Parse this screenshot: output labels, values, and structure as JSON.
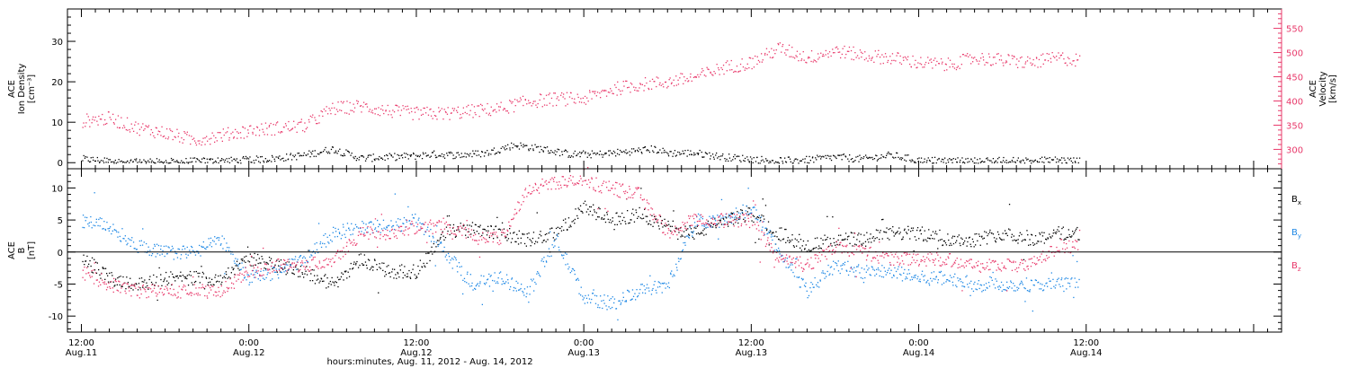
{
  "colors": {
    "black": "#000000",
    "pink": "#e8386a",
    "blue": "#1e88e5"
  },
  "x_axis": {
    "title": "hours:minutes, Aug. 11, 2012 - Aug. 14, 2012",
    "range_hours": [
      -1,
      86
    ],
    "ticks": [
      {
        "t": 0,
        "time": "12:00",
        "date": "Aug.11"
      },
      {
        "t": 12,
        "time": "0:00",
        "date": "Aug.12"
      },
      {
        "t": 24,
        "time": "12:00",
        "date": "Aug.12"
      },
      {
        "t": 36,
        "time": "0:00",
        "date": "Aug.13"
      },
      {
        "t": 48,
        "time": "12:00",
        "date": "Aug.13"
      },
      {
        "t": 60,
        "time": "0:00",
        "date": "Aug.14"
      },
      {
        "t": 72,
        "time": "12:00",
        "date": "Aug.14"
      }
    ]
  },
  "chart_data": [
    {
      "type": "scatter",
      "panel": "top",
      "ylabel_left": [
        "ACE",
        "Ion Density",
        "[cm⁻³]"
      ],
      "ylabel_right": [
        "ACE",
        "Velocity",
        "[km/s]"
      ],
      "ylim_left": [
        -1.5,
        38
      ],
      "ylim_right": [
        260,
        590
      ],
      "yticks_left": [
        0,
        10,
        20,
        30
      ],
      "yticks_right": [
        300,
        350,
        400,
        450,
        500,
        550
      ],
      "series": [
        {
          "axis": "left",
          "color": "#000000",
          "x": [
            0,
            3,
            6,
            9,
            12,
            14,
            16,
            18,
            20,
            22,
            24,
            25,
            27,
            29,
            31,
            33,
            35,
            37,
            39,
            41,
            42,
            44,
            46,
            48,
            50,
            52,
            54,
            56,
            58,
            60,
            62,
            64,
            66,
            68,
            70,
            71.5
          ],
          "y": [
            1.0,
            0.3,
            0.3,
            0.5,
            0.8,
            1.2,
            2.0,
            3.5,
            1.2,
            1.5,
            1.8,
            2.2,
            2.0,
            2.5,
            4.5,
            3.5,
            2.2,
            2.2,
            2.8,
            3.5,
            2.5,
            2.5,
            1.5,
            1.0,
            0.6,
            0.8,
            1.5,
            1.0,
            2.0,
            0.6,
            0.6,
            0.5,
            0.6,
            0.6,
            0.8,
            0.5
          ]
        },
        {
          "axis": "right",
          "color": "#e8386a",
          "x": [
            0,
            2,
            4,
            6,
            8,
            10,
            12,
            14,
            16,
            18,
            20,
            22,
            24,
            26,
            28,
            30,
            32,
            34,
            36,
            38,
            40,
            42,
            44,
            46,
            48,
            50,
            52,
            54,
            56,
            58,
            60,
            62,
            64,
            66,
            68,
            70,
            71.5
          ],
          "y": [
            360,
            365,
            345,
            335,
            320,
            330,
            340,
            345,
            350,
            385,
            390,
            380,
            375,
            375,
            380,
            385,
            400,
            405,
            405,
            425,
            435,
            440,
            450,
            470,
            480,
            510,
            490,
            505,
            495,
            490,
            480,
            475,
            490,
            485,
            480,
            490,
            485
          ]
        }
      ]
    },
    {
      "type": "scatter",
      "panel": "bottom",
      "ylabel_left": [
        "ACE",
        "B",
        "[nT]"
      ],
      "ylim": [
        -12.5,
        13
      ],
      "yticks": [
        -10,
        -5,
        0,
        5,
        10
      ],
      "zero_line": true,
      "legend_placement": "right",
      "series": [
        {
          "name": "B",
          "sub": "x",
          "color": "#000000",
          "x": [
            0,
            2,
            4,
            6,
            8,
            10,
            12,
            14,
            16,
            18,
            20,
            22,
            24,
            26,
            28,
            30,
            32,
            34,
            36,
            38,
            40,
            42,
            44,
            46,
            48,
            50,
            52,
            54,
            56,
            58,
            60,
            62,
            64,
            66,
            68,
            70,
            71.5
          ],
          "y": [
            -1,
            -4,
            -5,
            -4,
            -4,
            -4,
            -1,
            -2,
            -3,
            -5,
            -1,
            -3,
            -3,
            3,
            4,
            3,
            2,
            3,
            7,
            5,
            6,
            4,
            3,
            5,
            6,
            3,
            1,
            2,
            2,
            3,
            3,
            2,
            2,
            3,
            2,
            3,
            3
          ]
        },
        {
          "name": "B",
          "sub": "y",
          "color": "#1e88e5",
          "x": [
            0,
            2,
            4,
            6,
            8,
            10,
            12,
            14,
            16,
            18,
            20,
            22,
            24,
            26,
            28,
            30,
            32,
            34,
            36,
            38,
            40,
            42,
            44,
            46,
            48,
            50,
            52,
            54,
            56,
            58,
            60,
            62,
            64,
            66,
            68,
            70,
            71.5
          ],
          "y": [
            5,
            4,
            1,
            0,
            0,
            2,
            -4,
            -3,
            -1,
            3,
            4,
            4,
            5,
            0,
            -5,
            -4,
            -6,
            2,
            -7,
            -8,
            -6,
            -5,
            5,
            5,
            7,
            0,
            -6,
            -2,
            -3,
            -3,
            -4,
            -4,
            -5,
            -5,
            -5,
            -5,
            -5
          ]
        },
        {
          "name": "B",
          "sub": "z",
          "color": "#e8386a",
          "x": [
            0,
            2,
            4,
            6,
            8,
            10,
            12,
            14,
            16,
            18,
            20,
            22,
            24,
            26,
            28,
            30,
            32,
            34,
            36,
            38,
            40,
            42,
            44,
            46,
            48,
            50,
            52,
            54,
            56,
            58,
            60,
            62,
            64,
            66,
            68,
            70,
            71.5
          ],
          "y": [
            -3,
            -5,
            -6,
            -6,
            -6,
            -6,
            -3,
            -2,
            -2,
            -1,
            3,
            3,
            4,
            4,
            3,
            2,
            10,
            11,
            11,
            10,
            9,
            3,
            5,
            5,
            5,
            -1,
            -2,
            1,
            0,
            -1,
            -1,
            -1,
            -2,
            -2,
            -2,
            1,
            1
          ]
        }
      ]
    }
  ]
}
